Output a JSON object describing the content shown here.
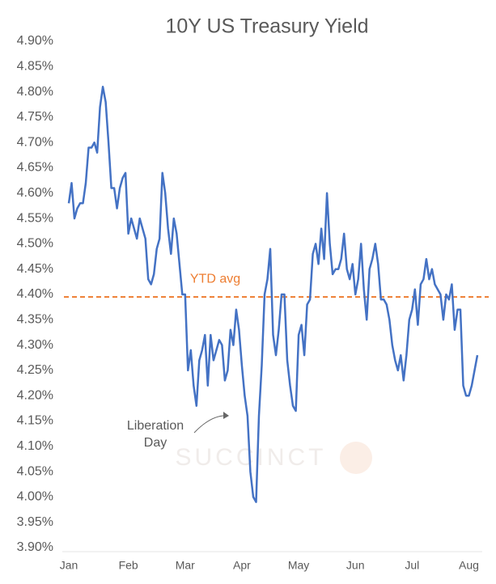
{
  "chart_data": {
    "type": "line",
    "title": "10Y US Treasury Yield",
    "categories": [
      "Jan",
      null,
      null,
      null,
      null,
      null,
      null,
      null,
      null,
      null,
      null,
      null,
      null,
      null,
      null,
      null,
      null,
      null,
      null,
      null,
      null,
      "Feb",
      null,
      null,
      null,
      null,
      null,
      null,
      null,
      null,
      null,
      null,
      null,
      null,
      null,
      null,
      null,
      null,
      null,
      null,
      null,
      "Mar",
      null,
      null,
      null,
      null,
      null,
      null,
      null,
      null,
      null,
      null,
      null,
      null,
      null,
      null,
      null,
      null,
      null,
      null,
      null,
      "Apr",
      null,
      null,
      null,
      null,
      null,
      null,
      null,
      null,
      null,
      null,
      null,
      null,
      null,
      null,
      null,
      null,
      null,
      null,
      null,
      "May",
      null,
      null,
      null,
      null,
      null,
      null,
      null,
      null,
      null,
      null,
      null,
      null,
      null,
      null,
      null,
      null,
      null,
      null,
      null,
      "Jun",
      null,
      null,
      null,
      null,
      null,
      null,
      null,
      null,
      null,
      null,
      null,
      null,
      null,
      null,
      null,
      null,
      null,
      null,
      null,
      "Jul",
      null,
      null,
      null,
      null,
      null,
      null,
      null,
      null,
      null,
      null,
      null,
      null,
      null,
      null,
      null,
      null,
      null,
      null,
      null,
      "Aug",
      null,
      null,
      null
    ],
    "series": [
      {
        "name": "10Y US Treasury Yield",
        "color": "#4472c4",
        "values": [
          4.58,
          4.62,
          4.55,
          4.57,
          4.58,
          4.58,
          4.62,
          4.69,
          4.69,
          4.7,
          4.68,
          4.77,
          4.81,
          4.78,
          4.7,
          4.61,
          4.61,
          4.57,
          4.61,
          4.63,
          4.64,
          4.52,
          4.55,
          4.53,
          4.51,
          4.55,
          4.53,
          4.51,
          4.43,
          4.42,
          4.44,
          4.49,
          4.51,
          4.64,
          4.6,
          4.53,
          4.48,
          4.55,
          4.52,
          4.46,
          4.4,
          4.4,
          4.25,
          4.29,
          4.22,
          4.18,
          4.27,
          4.29,
          4.32,
          4.22,
          4.32,
          4.27,
          4.29,
          4.31,
          4.3,
          4.23,
          4.25,
          4.33,
          4.3,
          4.37,
          4.33,
          4.26,
          4.2,
          4.16,
          4.05,
          4.0,
          3.99,
          4.16,
          4.26,
          4.4,
          4.43,
          4.49,
          4.32,
          4.28,
          4.33,
          4.4,
          4.4,
          4.27,
          4.22,
          4.18,
          4.17,
          4.32,
          4.34,
          4.28,
          4.38,
          4.39,
          4.48,
          4.5,
          4.46,
          4.53,
          4.47,
          4.6,
          4.5,
          4.44,
          4.45,
          4.45,
          4.47,
          4.52,
          4.45,
          4.43,
          4.46,
          4.4,
          4.43,
          4.5,
          4.41,
          4.35,
          4.45,
          4.47,
          4.5,
          4.46,
          4.39,
          4.39,
          4.38,
          4.35,
          4.3,
          4.27,
          4.25,
          4.28,
          4.23,
          4.28,
          4.35,
          4.37,
          4.41,
          4.34,
          4.42,
          4.43,
          4.47,
          4.43,
          4.45,
          4.42,
          4.41,
          4.4,
          4.35,
          4.4,
          4.39,
          4.42,
          4.33,
          4.37,
          4.37,
          4.22,
          4.2,
          4.2,
          4.22,
          4.25,
          4.28
        ]
      }
    ],
    "ylim": [
      3.9,
      4.9
    ],
    "yticks": [
      {
        "value": 3.9,
        "label": "3.90%"
      },
      {
        "value": 3.95,
        "label": "3.95%"
      },
      {
        "value": 4.0,
        "label": "4.00%"
      },
      {
        "value": 4.05,
        "label": "4.05%"
      },
      {
        "value": 4.1,
        "label": "4.10%"
      },
      {
        "value": 4.15,
        "label": "4.15%"
      },
      {
        "value": 4.2,
        "label": "4.20%"
      },
      {
        "value": 4.25,
        "label": "4.25%"
      },
      {
        "value": 4.3,
        "label": "4.30%"
      },
      {
        "value": 4.35,
        "label": "4.35%"
      },
      {
        "value": 4.4,
        "label": "4.40%"
      },
      {
        "value": 4.45,
        "label": "4.45%"
      },
      {
        "value": 4.5,
        "label": "4.50%"
      },
      {
        "value": 4.55,
        "label": "4.55%"
      },
      {
        "value": 4.6,
        "label": "4.60%"
      },
      {
        "value": 4.65,
        "label": "4.65%"
      },
      {
        "value": 4.7,
        "label": "4.70%"
      },
      {
        "value": 4.75,
        "label": "4.75%"
      },
      {
        "value": 4.8,
        "label": "4.80%"
      },
      {
        "value": 4.85,
        "label": "4.85%"
      },
      {
        "value": 4.9,
        "label": "4.90%"
      }
    ],
    "reference_line": {
      "label": "YTD avg",
      "value": 4.395,
      "color": "#ed7d31"
    },
    "annotation": "Liberation Day",
    "watermark": "SUCCINCT",
    "grid": false
  }
}
